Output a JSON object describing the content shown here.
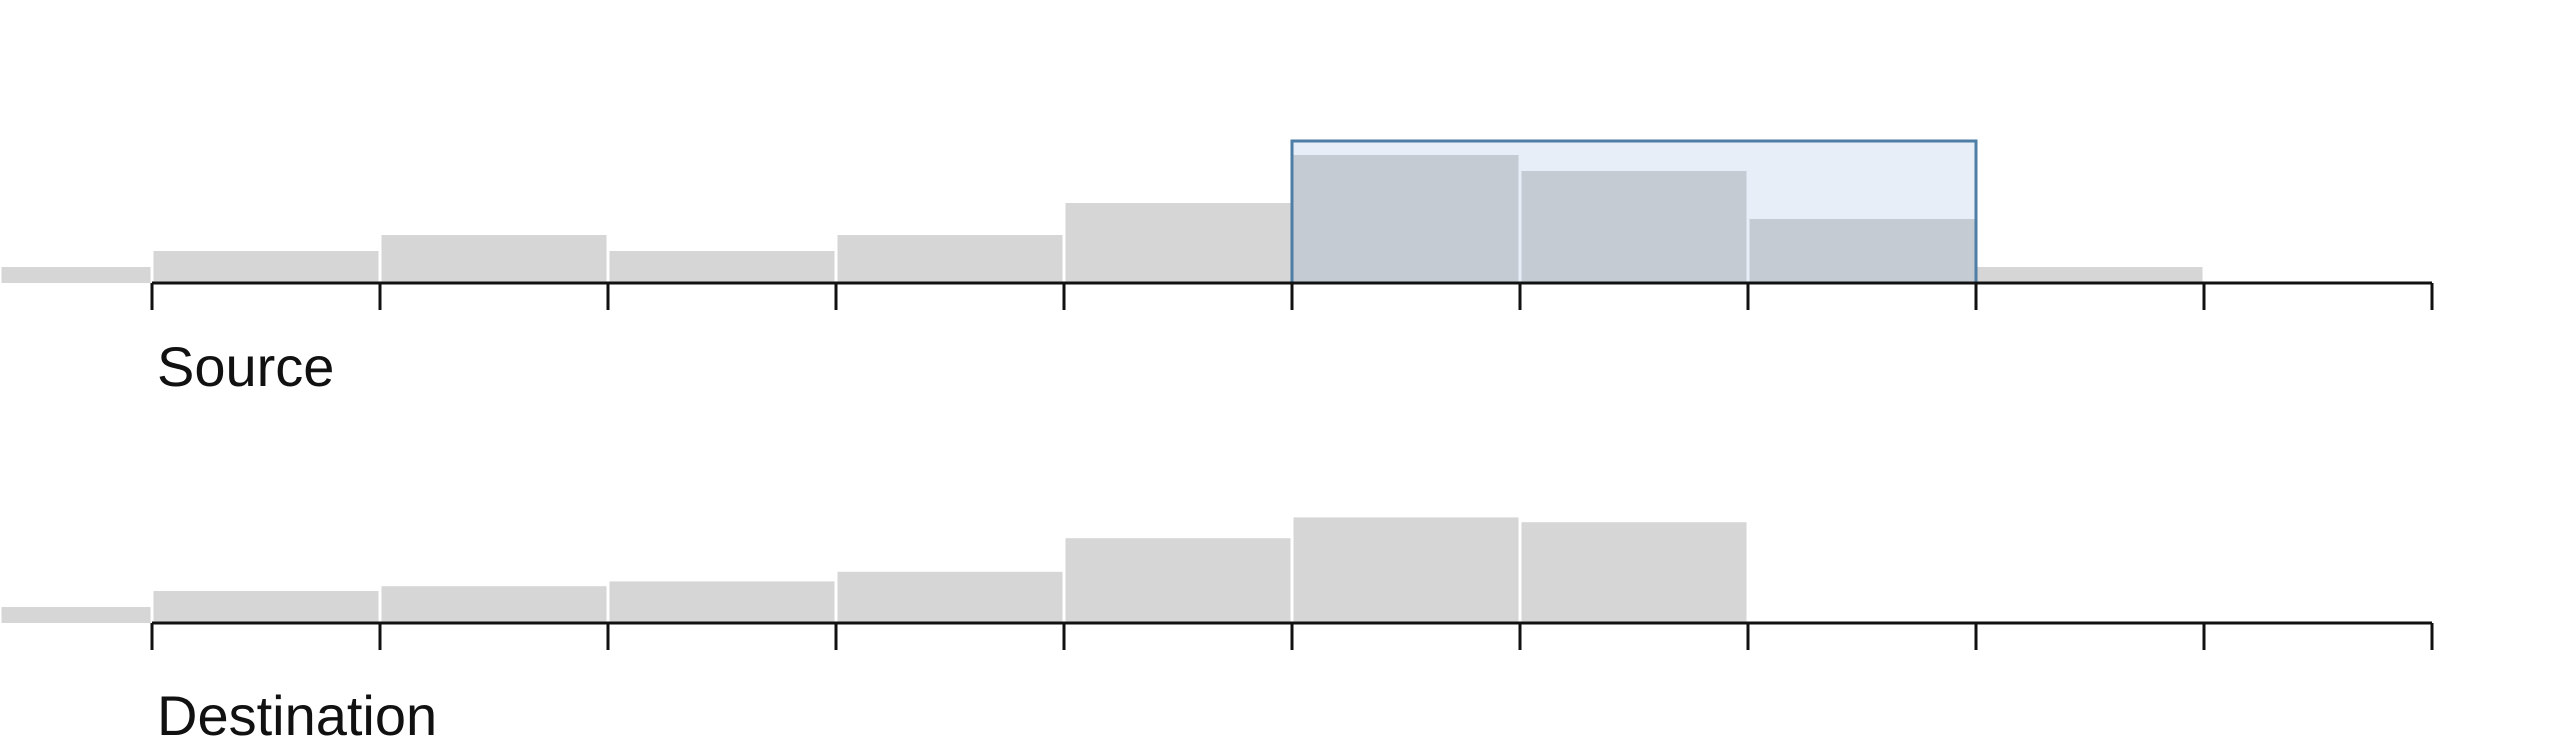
{
  "chart_data": [
    {
      "type": "bar",
      "name": "source",
      "xlabel": "Source",
      "bins": 12,
      "values": [
        1,
        2,
        3,
        2,
        3,
        5,
        8,
        7,
        4,
        1,
        0,
        0
      ],
      "ylim": [
        0,
        9
      ],
      "brush": {
        "start_bin": 5,
        "end_bin": 8
      },
      "colors": {
        "bar": "#d6d6d6",
        "bar_selected": "#c5cbd3",
        "brush_fill": "#e7eef8",
        "brush_stroke": "#4e7ea6",
        "axis": "#111111"
      }
    },
    {
      "type": "bar",
      "name": "destination",
      "xlabel": "Destination",
      "bins": 12,
      "values": [
        1,
        2,
        2.3,
        2.6,
        3.2,
        5.3,
        6.6,
        6.3,
        0,
        0,
        0,
        0
      ],
      "ylim": [
        0,
        9
      ],
      "colors": {
        "bar": "#d6d6d6",
        "axis": "#111111"
      }
    }
  ]
}
